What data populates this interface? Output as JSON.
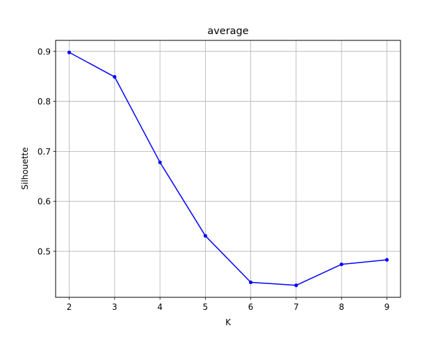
{
  "chart_data": {
    "type": "line",
    "title": "average",
    "xlabel": "K",
    "ylabel": "Silhouette",
    "x": [
      2,
      3,
      4,
      5,
      6,
      7,
      8,
      9
    ],
    "series": [
      {
        "values": [
          0.898,
          0.849,
          0.678,
          0.531,
          0.438,
          0.432,
          0.474,
          0.483
        ],
        "color": "#0000ff",
        "marker": "circle"
      }
    ],
    "xlim": [
      1.7,
      9.3
    ],
    "ylim": [
      0.408,
      0.922
    ],
    "xticks": [
      2,
      3,
      4,
      5,
      6,
      7,
      8,
      9
    ],
    "xtick_labels": [
      "2",
      "3",
      "4",
      "5",
      "6",
      "7",
      "8",
      "9"
    ],
    "yticks": [
      0.5,
      0.6,
      0.7,
      0.8,
      0.9
    ],
    "ytick_labels": [
      "0.5",
      "0.6",
      "0.7",
      "0.8",
      "0.9"
    ],
    "grid": true,
    "grid_color": "#b0b0b0",
    "axes_color": "#000000"
  }
}
